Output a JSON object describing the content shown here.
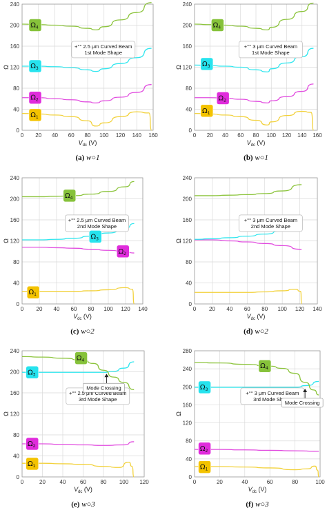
{
  "colors": {
    "omega1": "#F2D13A",
    "omega2": "#E14BDF",
    "omega3": "#2FE6EE",
    "omega4": "#8CC43C",
    "omega1_badge": "#F4C300",
    "omega2_badge": "#E02CDC",
    "omega3_badge": "#26E3EE",
    "omega4_badge": "#86C23A"
  },
  "captions": [
    {
      "letter": "(a)",
      "rest": "w○1"
    },
    {
      "letter": "(b)",
      "rest": "w○1"
    },
    {
      "letter": "(c)",
      "rest": "w○2"
    },
    {
      "letter": "(d)",
      "rest": "w○2"
    },
    {
      "letter": "(e)",
      "rest": "w○3"
    },
    {
      "letter": "(f)",
      "rest": "w○3"
    }
  ],
  "chart_data": [
    {
      "type": "line",
      "ylabel": "Ω",
      "xlabel_main": "V",
      "xlabel_sub": "dc",
      "xlabel_unit": " (V)",
      "xlim": [
        0,
        160
      ],
      "ylim": [
        0,
        240
      ],
      "xticks": [
        0,
        20,
        40,
        60,
        80,
        100,
        120,
        140,
        160
      ],
      "yticks": [
        0,
        40,
        80,
        120,
        160,
        200,
        240
      ],
      "annotation": [
        "+°° 2.5 μm Curved Beam",
        "1st Mode Shape"
      ],
      "badges": [
        {
          "label": "Ω",
          "sub": "4",
          "series": 3,
          "x": 16,
          "y": 200
        },
        {
          "label": "Ω",
          "sub": "3",
          "series": 2,
          "x": 16,
          "y": 122
        },
        {
          "label": "Ω",
          "sub": "2",
          "series": 1,
          "x": 16,
          "y": 62
        },
        {
          "label": "Ω",
          "sub": "1",
          "series": 0,
          "x": 16,
          "y": 29
        }
      ],
      "series": [
        {
          "x": [
            0,
            20,
            40,
            60,
            80,
            90,
            100,
            120,
            140,
            155,
            158
          ],
          "values": [
            32,
            31,
            29,
            26,
            18,
            8,
            14,
            26,
            35,
            33,
            0
          ]
        },
        {
          "x": [
            0,
            20,
            40,
            60,
            80,
            90,
            100,
            120,
            140,
            158
          ],
          "values": [
            62,
            62,
            60,
            58,
            54,
            52,
            56,
            63,
            72,
            87
          ]
        },
        {
          "x": [
            0,
            20,
            40,
            60,
            80,
            90,
            100,
            120,
            140,
            158
          ],
          "values": [
            122,
            122,
            121,
            119,
            115,
            112,
            117,
            127,
            138,
            156
          ]
        },
        {
          "x": [
            0,
            20,
            40,
            60,
            80,
            90,
            100,
            120,
            140,
            158
          ],
          "values": [
            202,
            201,
            200,
            198,
            194,
            191,
            197,
            210,
            224,
            243
          ]
        }
      ]
    },
    {
      "type": "line",
      "ylabel": "Ω",
      "xlabel_main": "V",
      "xlabel_sub": "dc",
      "xlabel_unit": " (V)",
      "xlim": [
        0,
        160
      ],
      "ylim": [
        0,
        240
      ],
      "xticks": [
        0,
        20,
        40,
        60,
        80,
        100,
        120,
        140,
        160
      ],
      "yticks": [
        0,
        40,
        80,
        120,
        160,
        200,
        240
      ],
      "annotation": [
        "+°° 3 μm Curved Beam",
        "1st Mode Shape"
      ],
      "badges": [
        {
          "label": "Ω",
          "sub": "4",
          "series": 3,
          "x": 30,
          "y": 200
        },
        {
          "label": "Ω",
          "sub": "3",
          "series": 2,
          "x": 16,
          "y": 126
        },
        {
          "label": "Ω",
          "sub": "2",
          "series": 1,
          "x": 37,
          "y": 61
        },
        {
          "label": "Ω",
          "sub": "1",
          "series": 0,
          "x": 16,
          "y": 37
        }
      ],
      "series": [
        {
          "x": [
            0,
            20,
            40,
            60,
            80,
            95,
            100,
            120,
            140,
            152,
            155
          ],
          "values": [
            32,
            31,
            29,
            26,
            19,
            10,
            16,
            28,
            36,
            34,
            0
          ]
        },
        {
          "x": [
            0,
            20,
            40,
            60,
            80,
            95,
            100,
            120,
            140,
            155
          ],
          "values": [
            62,
            62,
            61,
            59,
            55,
            52,
            56,
            64,
            74,
            88
          ]
        },
        {
          "x": [
            0,
            20,
            40,
            60,
            80,
            95,
            100,
            120,
            140,
            155
          ],
          "values": [
            124,
            123,
            122,
            120,
            115,
            111,
            117,
            128,
            140,
            156
          ]
        },
        {
          "x": [
            0,
            20,
            40,
            60,
            80,
            95,
            100,
            120,
            140,
            155
          ],
          "values": [
            202,
            201,
            200,
            198,
            194,
            191,
            196,
            211,
            226,
            242
          ]
        }
      ]
    },
    {
      "type": "line",
      "ylabel": "Ω",
      "xlabel_main": "V",
      "xlabel_sub": "dc",
      "xlabel_unit": " (V)",
      "xlim": [
        0,
        140
      ],
      "ylim": [
        0,
        240
      ],
      "xticks": [
        0,
        20,
        40,
        60,
        80,
        100,
        120,
        140
      ],
      "yticks": [
        0,
        40,
        80,
        120,
        160,
        200,
        240
      ],
      "annotation": [
        "+°° 2.5 μm Curved Beam",
        "2nd Mode Shape"
      ],
      "badges": [
        {
          "label": "Ω",
          "sub": "4",
          "series": 3,
          "x": 55,
          "y": 206
        },
        {
          "label": "Ω",
          "sub": "3",
          "series": 2,
          "x": 85,
          "y": 128
        },
        {
          "label": "Ω",
          "sub": "2",
          "series": 1,
          "x": 117,
          "y": 100
        },
        {
          "label": "Ω",
          "sub": "1",
          "series": 0,
          "x": 13,
          "y": 22
        }
      ],
      "series": [
        {
          "x": [
            0,
            20,
            40,
            60,
            80,
            100,
            120,
            128,
            130
          ],
          "values": [
            24,
            24,
            24,
            24,
            25,
            27,
            31,
            28,
            0
          ]
        },
        {
          "x": [
            0,
            20,
            40,
            60,
            80,
            100,
            120,
            130
          ],
          "values": [
            108,
            108,
            107,
            106,
            104,
            102,
            99,
            97
          ]
        },
        {
          "x": [
            0,
            20,
            40,
            60,
            80,
            100,
            120,
            130
          ],
          "values": [
            122,
            122,
            123,
            125,
            129,
            135,
            144,
            153
          ]
        },
        {
          "x": [
            0,
            20,
            40,
            60,
            80,
            100,
            120,
            130
          ],
          "values": [
            204,
            204,
            205,
            206,
            209,
            214,
            223,
            233
          ]
        }
      ]
    },
    {
      "type": "line",
      "ylabel": "Ω",
      "xlabel_main": "V",
      "xlabel_sub": "dc",
      "xlabel_unit": " (V)",
      "xlim": [
        0,
        140
      ],
      "ylim": [
        0,
        240
      ],
      "xticks": [
        0,
        20,
        40,
        60,
        80,
        100,
        120,
        140
      ],
      "yticks": [
        0,
        40,
        80,
        120,
        160,
        200,
        240
      ],
      "annotation": [
        "+°° 3 μm Curved Beam",
        "2nd Mode Shape"
      ],
      "badges": [],
      "series": [
        {
          "x": [
            0,
            20,
            40,
            60,
            80,
            100,
            115,
            121,
            122
          ],
          "values": [
            22,
            22,
            22,
            22,
            23,
            25,
            28,
            24,
            0
          ]
        },
        {
          "x": [
            0,
            20,
            40,
            60,
            80,
            100,
            122
          ],
          "values": [
            122,
            122,
            120,
            118,
            115,
            111,
            104
          ]
        },
        {
          "x": [
            0,
            20,
            40,
            60,
            80,
            100,
            122
          ],
          "values": [
            123,
            124,
            126,
            129,
            133,
            139,
            151
          ]
        },
        {
          "x": [
            0,
            20,
            40,
            60,
            80,
            100,
            122
          ],
          "values": [
            206,
            206,
            207,
            208,
            210,
            215,
            227
          ]
        }
      ]
    },
    {
      "type": "line",
      "ylabel": "Ω",
      "xlabel_main": "V",
      "xlabel_sub": "dc",
      "xlabel_unit": " (V)",
      "xlim": [
        0,
        120
      ],
      "ylim": [
        0,
        240
      ],
      "xticks": [
        0,
        20,
        40,
        60,
        80,
        100,
        120
      ],
      "yticks": [
        0,
        40,
        80,
        120,
        160,
        200,
        240
      ],
      "annotation": [
        "+°° 2.5 μm Curved Beam",
        "3rd Mode Shape"
      ],
      "crossing": {
        "label": "Mode Crossing",
        "x": 83,
        "y": 199
      },
      "badges": [
        {
          "label": "Ω",
          "sub": "4",
          "series": 3,
          "x": 58,
          "y": 226
        },
        {
          "label": "Ω",
          "sub": "3",
          "series": 2,
          "x": 10,
          "y": 199
        },
        {
          "label": "Ω",
          "sub": "2",
          "series": 1,
          "x": 10,
          "y": 63
        },
        {
          "label": "Ω",
          "sub": "1",
          "series": 0,
          "x": 10,
          "y": 25
        }
      ],
      "series": [
        {
          "x": [
            0,
            20,
            40,
            60,
            80,
            95,
            105,
            108,
            110
          ],
          "values": [
            26,
            26,
            25,
            24,
            20,
            18,
            28,
            20,
            0
          ]
        },
        {
          "x": [
            0,
            20,
            40,
            60,
            80,
            100,
            110
          ],
          "values": [
            63,
            63,
            62,
            61,
            60,
            61,
            67
          ]
        },
        {
          "x": [
            0,
            20,
            40,
            60,
            80,
            90,
            100,
            110
          ],
          "values": [
            199,
            199,
            199,
            199,
            199,
            201,
            207,
            219
          ]
        },
        {
          "x": [
            0,
            20,
            40,
            60,
            70,
            80,
            90,
            100,
            110
          ],
          "values": [
            229,
            228,
            226,
            222,
            216,
            203,
            190,
            180,
            166
          ]
        }
      ]
    },
    {
      "type": "line",
      "ylabel": "Ω",
      "xlabel_main": "V",
      "xlabel_sub": "dc",
      "xlabel_unit": " (V)",
      "xlim": [
        0,
        100
      ],
      "ylim": [
        0,
        280
      ],
      "xticks": [
        0,
        20,
        40,
        60,
        80,
        100
      ],
      "yticks": [
        0,
        40,
        80,
        120,
        160,
        200,
        240,
        280
      ],
      "annotation": [
        "+°° 3 μm Curved Beam",
        "3rd Mode Shape"
      ],
      "crossing": {
        "label": "Mode Crossing",
        "x": 88,
        "y": 199
      },
      "badges": [
        {
          "label": "Ω",
          "sub": "4",
          "series": 3,
          "x": 56,
          "y": 246
        },
        {
          "label": "Ω",
          "sub": "3",
          "series": 2,
          "x": 8,
          "y": 199
        },
        {
          "label": "Ω",
          "sub": "2",
          "series": 1,
          "x": 8,
          "y": 63
        },
        {
          "label": "Ω",
          "sub": "1",
          "series": 0,
          "x": 8,
          "y": 22
        }
      ],
      "series": [
        {
          "x": [
            0,
            20,
            40,
            60,
            80,
            90,
            96,
            98,
            99
          ],
          "values": [
            23,
            23,
            22,
            20,
            16,
            18,
            24,
            15,
            0
          ]
        },
        {
          "x": [
            0,
            20,
            40,
            60,
            80,
            99
          ],
          "values": [
            61,
            61,
            60,
            59,
            58,
            57
          ]
        },
        {
          "x": [
            0,
            20,
            40,
            60,
            80,
            90,
            99
          ],
          "values": [
            199,
            199,
            199,
            199,
            199,
            203,
            212
          ]
        },
        {
          "x": [
            0,
            20,
            40,
            60,
            70,
            80,
            88,
            95,
            99
          ],
          "values": [
            254,
            253,
            250,
            246,
            241,
            230,
            210,
            193,
            182
          ]
        }
      ]
    }
  ]
}
